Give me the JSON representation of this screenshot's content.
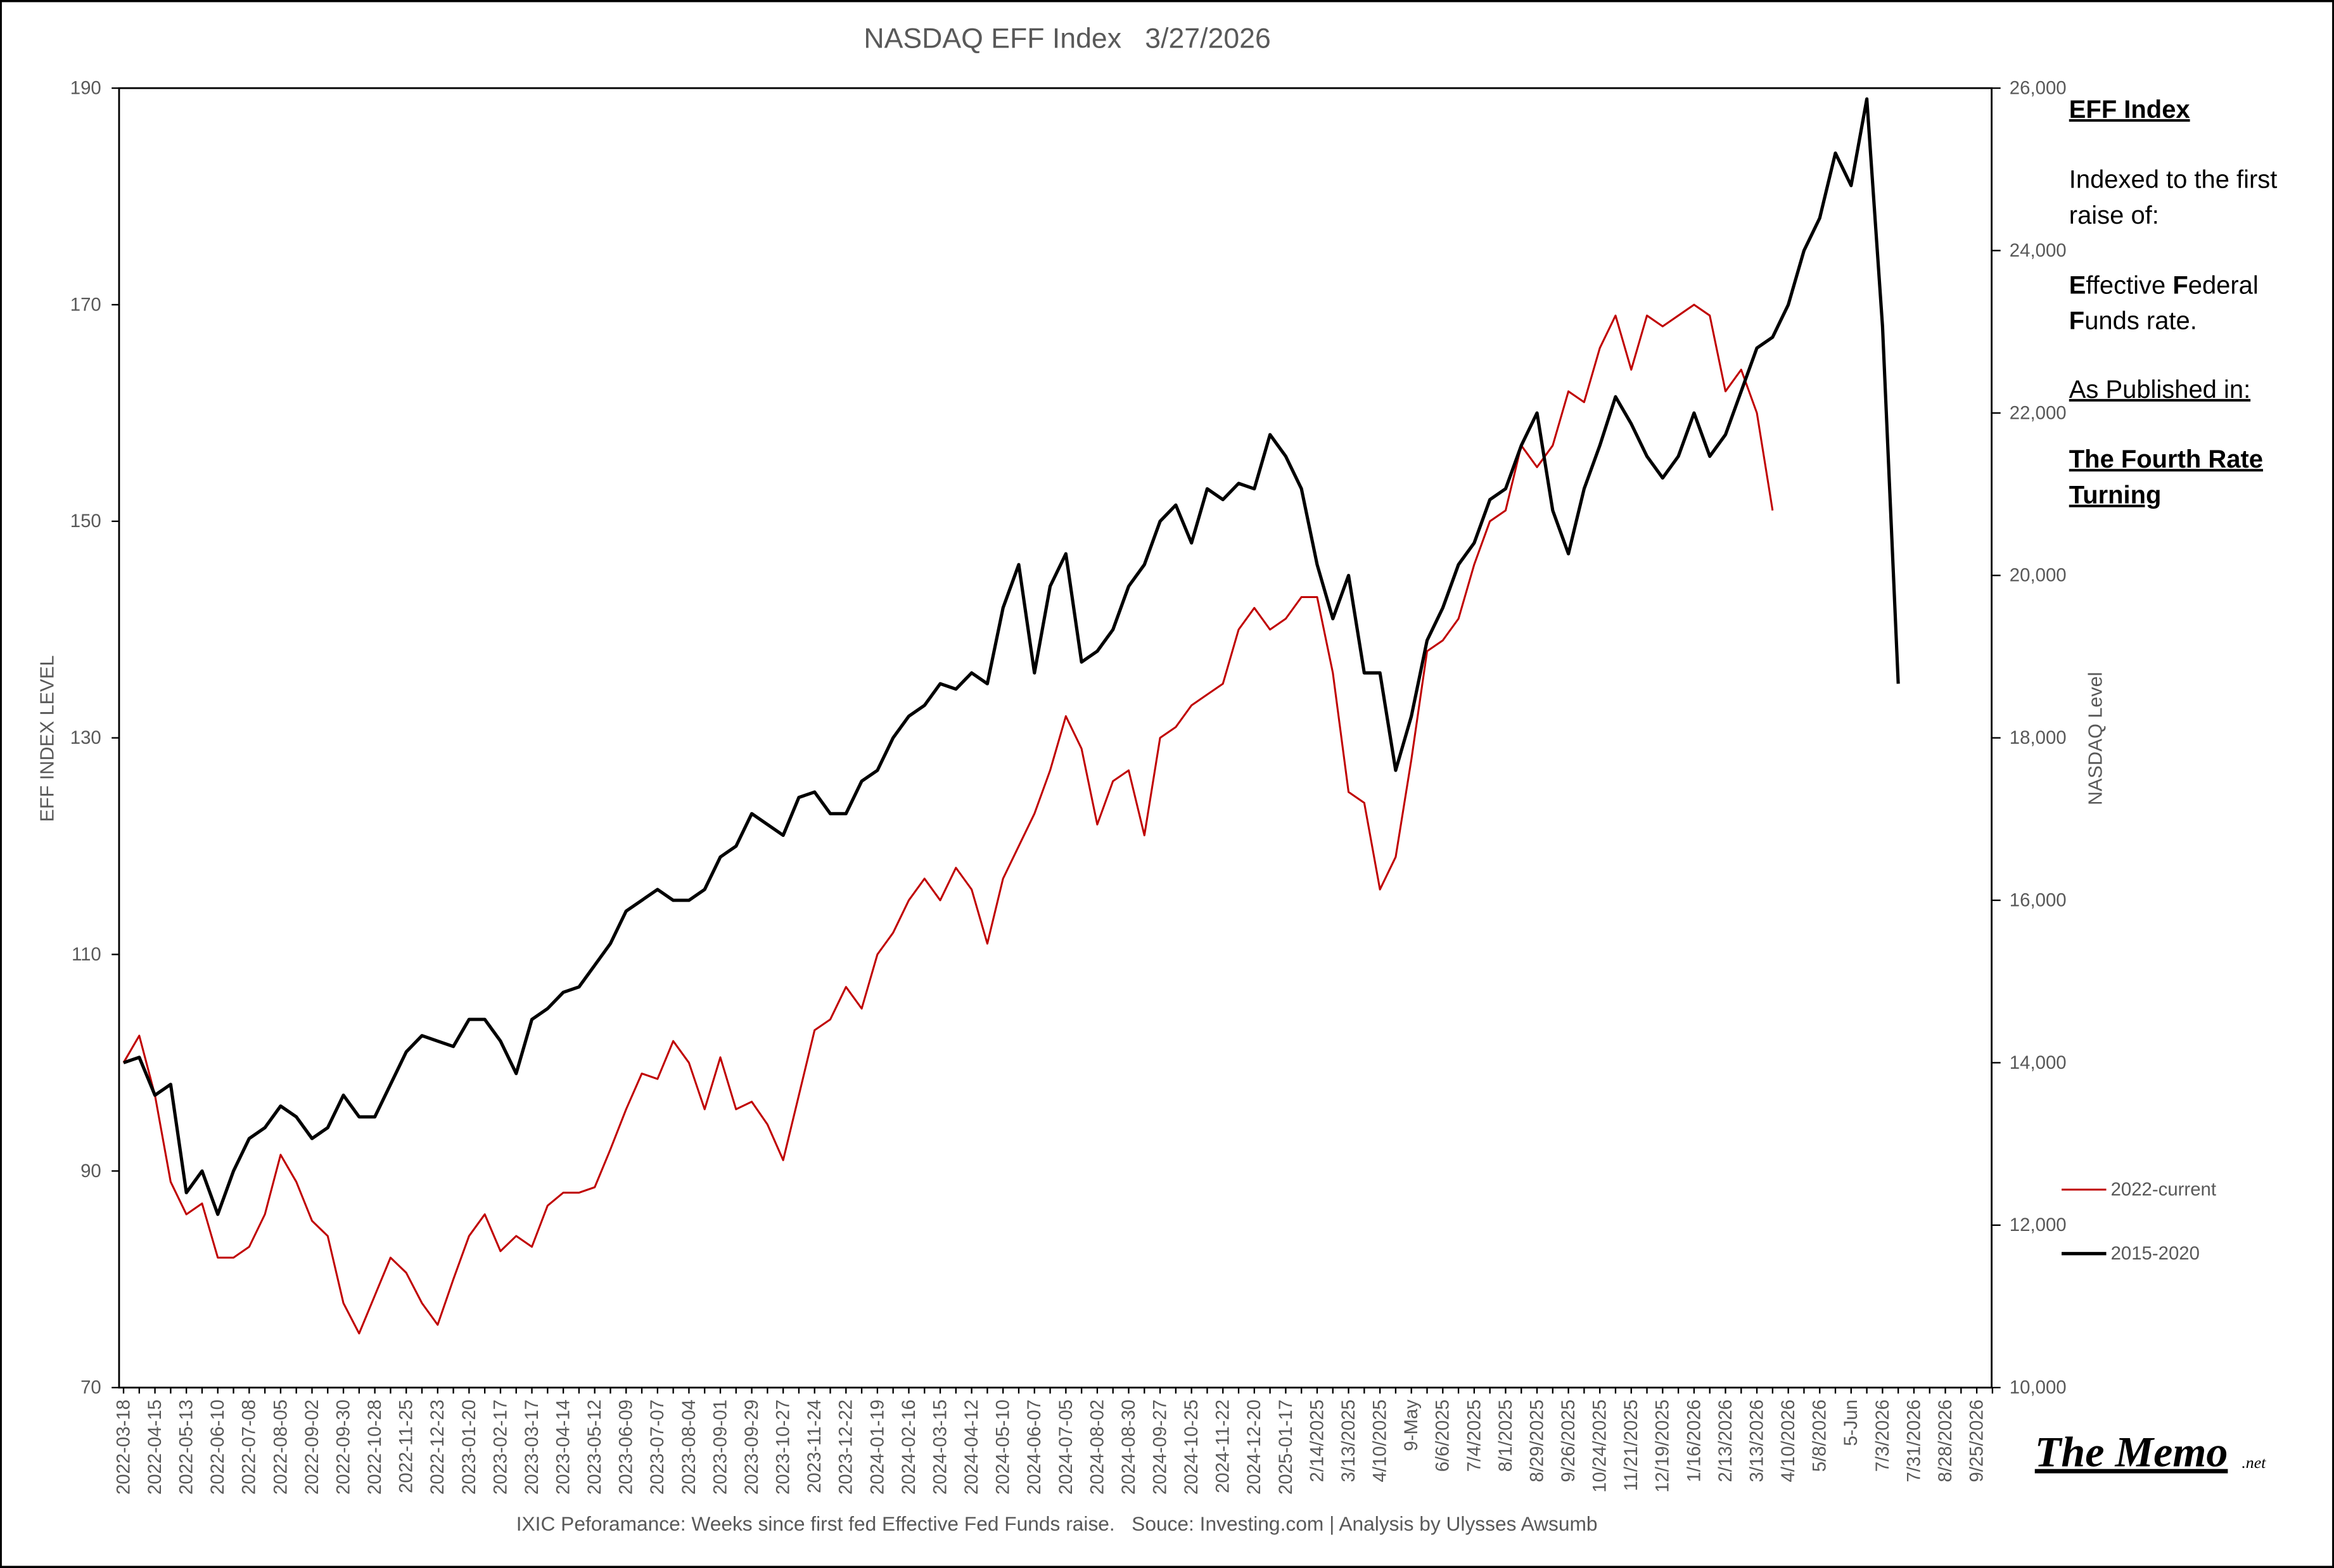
{
  "chart_data": {
    "type": "line",
    "title": "NASDAQ EFF Index   3/27/2026",
    "y_label": "EFF INDEX LEVEL",
    "y2_label": "NASDAQ Level",
    "footer": "IXIC Peforamance: Weeks since first fed Effective Fed Funds raise.   Souce: Investing.com | Analysis by Ulysses Awsumb",
    "categories": [
      "2022-03-18",
      null,
      "2022-04-15",
      null,
      "2022-05-13",
      null,
      "2022-06-10",
      null,
      "2022-07-08",
      null,
      "2022-08-05",
      null,
      "2022-09-02",
      null,
      "2022-09-30",
      null,
      "2022-10-28",
      null,
      "2022-11-25",
      null,
      "2022-12-23",
      null,
      "2023-01-20",
      null,
      "2023-02-17",
      null,
      "2023-03-17",
      null,
      "2023-04-14",
      null,
      "2023-05-12",
      null,
      "2023-06-09",
      null,
      "2023-07-07",
      null,
      "2023-08-04",
      null,
      "2023-09-01",
      null,
      "2023-09-29",
      null,
      "2023-10-27",
      null,
      "2023-11-24",
      null,
      "2023-12-22",
      null,
      "2024-01-19",
      null,
      "2024-02-16",
      null,
      "2024-03-15",
      null,
      "2024-04-12",
      null,
      "2024-05-10",
      null,
      "2024-06-07",
      null,
      "2024-07-05",
      null,
      "2024-08-02",
      null,
      "2024-08-30",
      null,
      "2024-09-27",
      null,
      "2024-10-25",
      null,
      "2024-11-22",
      null,
      "2024-12-20",
      null,
      "2025-01-17",
      null,
      "2/14/2025",
      null,
      "3/13/2025",
      null,
      "4/10/2025",
      null,
      "9-May",
      null,
      "6/6/2025",
      null,
      "7/4/2025",
      null,
      "8/1/2025",
      null,
      "8/29/2025",
      null,
      "9/26/2025",
      null,
      "10/24/2025",
      null,
      "11/21/2025",
      null,
      "12/19/2025",
      null,
      "1/16/2026",
      null,
      "2/13/2026",
      null,
      "3/13/2026",
      null,
      "4/10/2026",
      null,
      "5/8/2026",
      null,
      "5-Jun",
      null,
      "7/3/2026",
      null,
      "7/31/2026",
      null,
      "8/28/2026",
      null,
      "9/25/2026",
      null
    ],
    "series": [
      {
        "name": "2022-current",
        "color": "#c00000",
        "width": 1.3,
        "values": [
          100,
          102.5,
          97,
          89,
          86,
          87,
          82,
          82,
          83,
          86,
          91.5,
          89,
          85.4,
          84,
          77.8,
          75,
          78.5,
          82,
          80.6,
          77.8,
          75.8,
          80,
          84,
          86,
          82.6,
          84,
          83,
          86.8,
          88,
          88,
          88.5,
          92,
          95.7,
          99,
          98.5,
          102,
          100,
          95.7,
          100.5,
          95.7,
          96.4,
          94.3,
          91,
          97,
          103,
          104,
          107,
          105,
          110,
          112,
          115,
          117,
          115,
          118,
          116,
          111,
          117,
          120,
          123,
          127,
          132,
          129,
          122,
          126,
          127,
          121,
          130,
          131,
          133,
          134,
          135,
          140,
          142,
          140,
          141,
          143,
          143,
          136,
          125,
          124,
          116,
          119,
          128,
          138,
          139,
          141,
          146,
          150,
          151,
          157,
          155,
          157,
          162,
          161,
          166,
          169,
          164,
          169,
          168,
          169,
          170,
          169,
          162,
          164,
          160,
          151,
          null,
          null,
          null,
          null,
          null,
          null,
          null,
          null,
          null,
          null,
          null,
          null,
          null,
          null
        ]
      },
      {
        "name": "2015-2020",
        "color": "#000000",
        "width": 2.2,
        "values": [
          100,
          100.5,
          97,
          98,
          88,
          90,
          86,
          90,
          93,
          94,
          96,
          95,
          93,
          94,
          97,
          95,
          95,
          98,
          101,
          102.5,
          102,
          101.5,
          104,
          104,
          102,
          99,
          104,
          105,
          106.5,
          107,
          109,
          111,
          114,
          115,
          116,
          115,
          115,
          116,
          119,
          120,
          123,
          122,
          121,
          124.5,
          125,
          123,
          123,
          126,
          127,
          130,
          132,
          133,
          135,
          134.5,
          136,
          135,
          142,
          146,
          136,
          144,
          147,
          137,
          138,
          140,
          144,
          146,
          150,
          151.5,
          148,
          153,
          152,
          153.5,
          153,
          158,
          156,
          153,
          146,
          141,
          145,
          136,
          136,
          127,
          132,
          139,
          142,
          146,
          148,
          152,
          153,
          157,
          160,
          151,
          147,
          153,
          157,
          161.5,
          159,
          156,
          154,
          156,
          160,
          156,
          158,
          162,
          166,
          167,
          170,
          175,
          178,
          184,
          181,
          189,
          168,
          135,
          null,
          null,
          null,
          null,
          null,
          null
        ]
      }
    ],
    "ylim": [
      70,
      190
    ],
    "yticks": [
      70,
      90,
      110,
      130,
      150,
      170,
      190
    ],
    "y2lim": [
      10000,
      26000
    ],
    "y2ticks": [
      {
        "value": 10000,
        "label": "10,000"
      },
      {
        "value": 12000,
        "label": "12,000"
      },
      {
        "value": 14000,
        "label": "14,000"
      },
      {
        "value": 16000,
        "label": "16,000"
      },
      {
        "value": 18000,
        "label": "18,000"
      },
      {
        "value": 20000,
        "label": "20,000"
      },
      {
        "value": 22000,
        "label": "22,000"
      },
      {
        "value": 24000,
        "label": "24,000"
      },
      {
        "value": 26000,
        "label": "26,000"
      }
    ],
    "grid": false,
    "legend": "lower right"
  },
  "side_note": {
    "heading": "EFF Index",
    "lines": [
      "Indexed to the first",
      "raise of:",
      "Effective Federal",
      "Funds rate.",
      "As Published in:",
      "The Fourth Rate",
      "Turning"
    ]
  },
  "logo": {
    "name": "The Memo",
    "suffix": ".net"
  }
}
